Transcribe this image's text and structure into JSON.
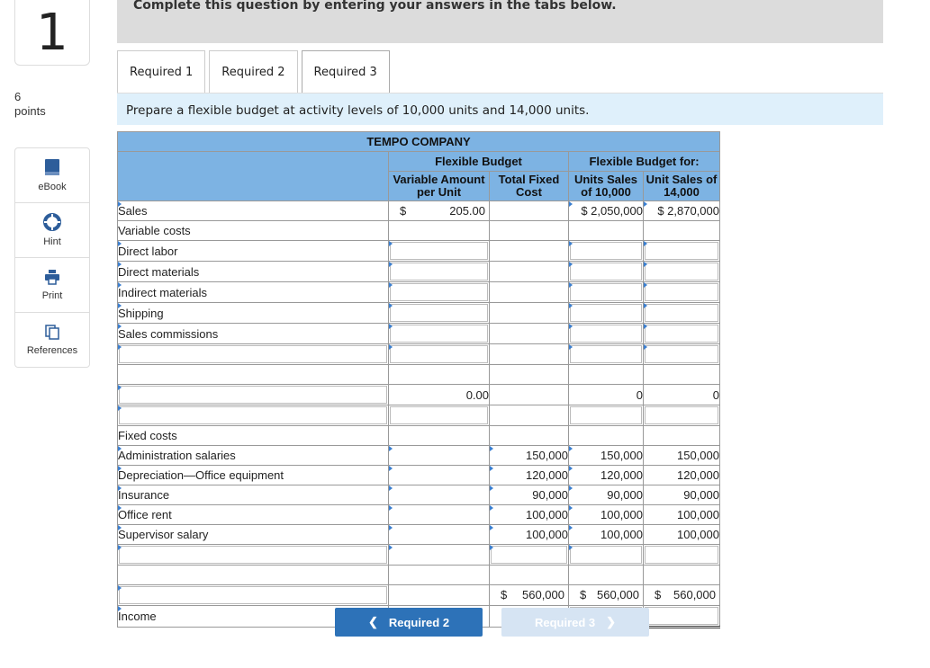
{
  "question": {
    "number": "1",
    "points_value": "6",
    "points_label": "points"
  },
  "tools": [
    {
      "label": "eBook",
      "icon": "book-icon"
    },
    {
      "label": "Hint",
      "icon": "lifebuoy-icon"
    },
    {
      "label": "Print",
      "icon": "printer-icon"
    },
    {
      "label": "References",
      "icon": "copy-icon"
    }
  ],
  "banner_text": "Complete this question by entering your answers in the tabs below.",
  "tabs": [
    "Required 1",
    "Required 2",
    "Required 3"
  ],
  "active_tab": "Required 3",
  "instruction": "Prepare a flexible budget at activity levels of 10,000 units and 14,000 units.",
  "table": {
    "company": "TEMPO COMPANY",
    "group_flexible": "Flexible Budget",
    "group_for": "Flexible Budget for:",
    "col_var": "Variable Amount per Unit",
    "col_fixed": "Total Fixed Cost",
    "col_10k": "Units Sales of 10,000",
    "col_14k": "Unit Sales of 14,000",
    "sales_label": "Sales",
    "sales_dollar": "$",
    "sales_var": "205.00",
    "sales_10k": "$ 2,050,000",
    "sales_14k": "$ 2,870,000",
    "variable_costs_label": "Variable costs",
    "variable_items": [
      "Direct labor",
      "Direct materials",
      "Indirect materials",
      "Shipping",
      "Sales commissions"
    ],
    "var_total": "0.00",
    "var_total_10k": "0",
    "var_total_14k": "0",
    "fixed_costs_label": "Fixed costs",
    "fixed_items": [
      {
        "label": "Administration salaries",
        "fixed": "150,000",
        "u10": "150,000",
        "u14": "150,000"
      },
      {
        "label": "Depreciation—Office equipment",
        "fixed": "120,000",
        "u10": "120,000",
        "u14": "120,000"
      },
      {
        "label": "Insurance",
        "fixed": "90,000",
        "u10": "90,000",
        "u14": "90,000"
      },
      {
        "label": "Office rent",
        "fixed": "100,000",
        "u10": "100,000",
        "u14": "100,000"
      },
      {
        "label": "Supervisor salary",
        "fixed": "100,000",
        "u10": "100,000",
        "u14": "100,000"
      }
    ],
    "fixed_total_dollar": "$",
    "fixed_total": "560,000",
    "fixed_total_10k": "560,000",
    "fixed_total_14k": "560,000",
    "income_label": "Income"
  },
  "nav": {
    "prev_label": "Required 2",
    "next_label": "Required 3"
  }
}
